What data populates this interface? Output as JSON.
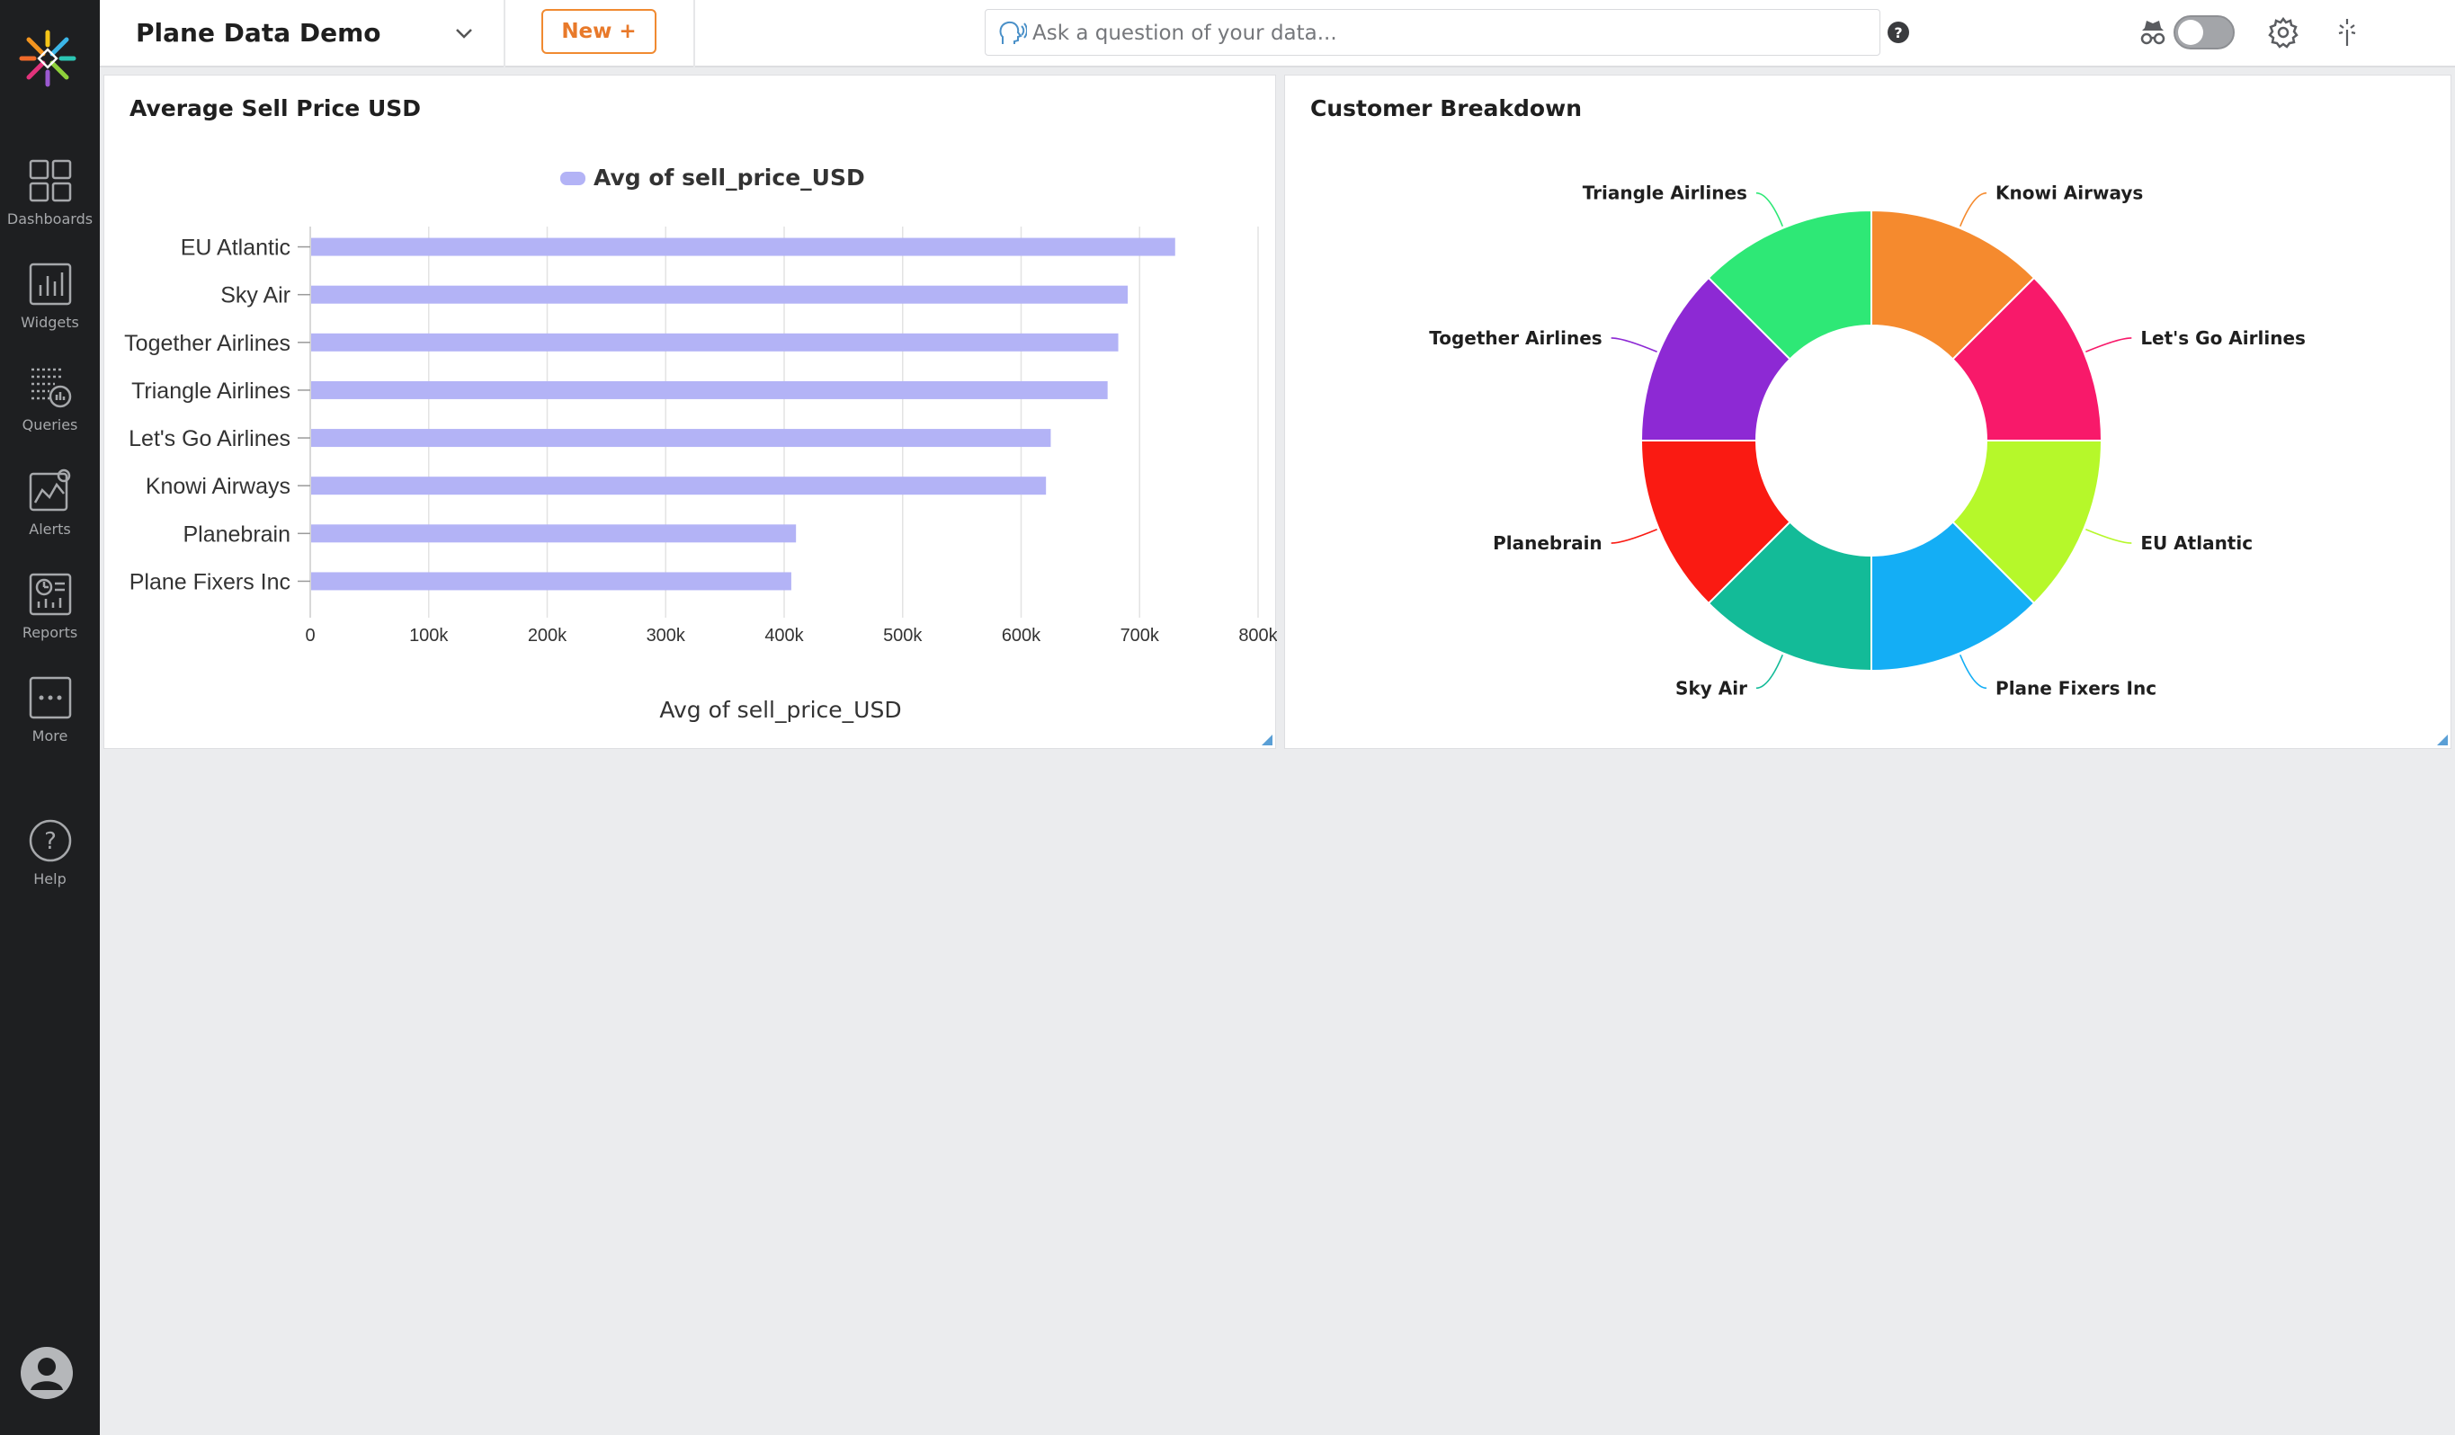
{
  "app": {
    "dashboard_title": "Plane Data Demo",
    "new_button": "New +",
    "ask_placeholder": "Ask a question of your data..."
  },
  "sidebar": {
    "items": [
      {
        "label": "Dashboards",
        "icon": "dashboards-icon"
      },
      {
        "label": "Widgets",
        "icon": "widgets-icon"
      },
      {
        "label": "Queries",
        "icon": "queries-icon"
      },
      {
        "label": "Alerts",
        "icon": "alerts-icon"
      },
      {
        "label": "Reports",
        "icon": "reports-icon"
      },
      {
        "label": "More",
        "icon": "more-icon"
      },
      {
        "label": "Help",
        "icon": "help-icon"
      }
    ]
  },
  "toolbar_icons": [
    "help-circle-icon",
    "incognito-icon",
    "toggle-switch",
    "gear-icon",
    "magic-wand-icon",
    "more-horizontal-icon"
  ],
  "widgets": {
    "bar": {
      "title": "Average Sell Price USD"
    },
    "donut": {
      "title": "Customer Breakdown"
    }
  },
  "chart_data": [
    {
      "type": "bar",
      "orientation": "horizontal",
      "title": "Average Sell Price USD",
      "legend": [
        "Avg of sell_price_USD"
      ],
      "legend_position": "top",
      "xlabel": "Avg of sell_price_USD",
      "ylabel": "",
      "xlim": [
        0,
        800000
      ],
      "x_ticks": [
        "0",
        "100k",
        "200k",
        "300k",
        "400k",
        "500k",
        "600k",
        "700k",
        "800k"
      ],
      "grid": true,
      "categories": [
        "EU Atlantic",
        "Sky Air",
        "Together Airlines",
        "Triangle Airlines",
        "Let's Go Airlines",
        "Knowi Airways",
        "Planebrain",
        "Plane Fixers Inc"
      ],
      "series": [
        {
          "name": "Avg of sell_price_USD",
          "color": "#b3b3f6",
          "values": [
            730000,
            690000,
            682000,
            673000,
            625000,
            621000,
            410000,
            406000
          ]
        }
      ]
    },
    {
      "type": "pie",
      "variant": "donut",
      "title": "Customer Breakdown",
      "slices": [
        {
          "label": "Knowi Airways",
          "value": 12.5,
          "color": "#f58a2e"
        },
        {
          "label": "Let's Go Airlines",
          "value": 12.5,
          "color": "#f8196a"
        },
        {
          "label": "EU Atlantic",
          "value": 12.5,
          "color": "#b6f82a"
        },
        {
          "label": "Plane Fixers Inc",
          "value": 12.5,
          "color": "#14aef5"
        },
        {
          "label": "Sky Air",
          "value": 12.5,
          "color": "#13bb98"
        },
        {
          "label": "Planebrain",
          "value": 12.5,
          "color": "#fa1a12"
        },
        {
          "label": "Together Airlines",
          "value": 12.5,
          "color": "#8d29d4"
        },
        {
          "label": "Triangle Airlines",
          "value": 12.5,
          "color": "#2ee876"
        }
      ]
    }
  ]
}
